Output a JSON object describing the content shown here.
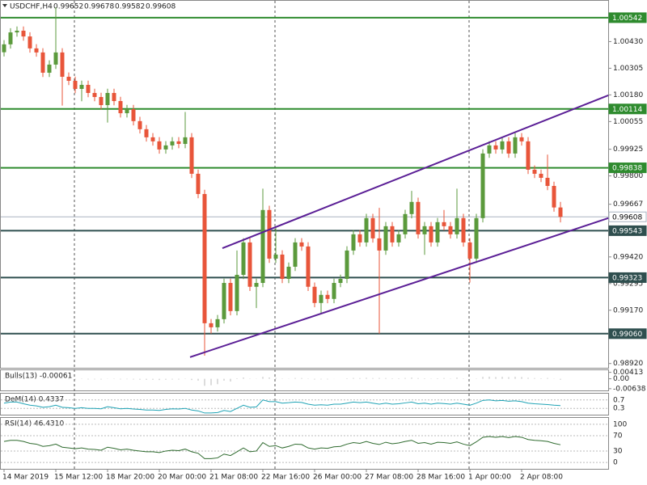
{
  "chart_data": {
    "type": "candlestick",
    "symbol": "USDCHF,H4",
    "up_color": "#5b9a3c",
    "down_color": "#e8553a",
    "categories": [
      "14 Mar 2019",
      null,
      null,
      null,
      null,
      null,
      null,
      null,
      "15 Mar 12:00",
      null,
      null,
      null,
      null,
      null,
      null,
      null,
      "18 Mar 20:00",
      null,
      null,
      null,
      null,
      null,
      null,
      null,
      "20 Mar 00:00",
      null,
      null,
      null,
      null,
      null,
      null,
      null,
      "21 Mar 08:00",
      null,
      null,
      null,
      null,
      null,
      null,
      null,
      "22 Mar 16:00",
      null,
      null,
      null,
      null,
      null,
      null,
      null,
      "26 Mar 00:00",
      null,
      null,
      null,
      null,
      null,
      null,
      null,
      "27 Mar 08:00",
      null,
      null,
      null,
      null,
      null,
      null,
      null,
      "28 Mar 16:00",
      null,
      null,
      null,
      null,
      null,
      null,
      null,
      "1 Apr 00:00",
      null,
      null,
      null,
      null,
      null,
      null,
      null,
      "2 Apr 08:00",
      null,
      null,
      null,
      null,
      null,
      null
    ],
    "open": [
      1.0038,
      1.00417,
      1.00473,
      1.00481,
      1.00454,
      1.00398,
      1.00379,
      1.00284,
      1.00322,
      1.00379,
      1.00265,
      1.00246,
      1.00208,
      1.00227,
      1.00189,
      1.0017,
      1.00132,
      1.00189,
      1.00151,
      1.00094,
      1.00113,
      1.00057,
      1.00019,
      0.99981,
      0.99962,
      0.99924,
      0.99943,
      0.99962,
      0.9995,
      0.99981,
      0.9981,
      0.99715,
      0.99109,
      0.9909,
      0.99128,
      0.99298,
      0.99166,
      0.99336,
      0.99488,
      0.9928,
      0.99298,
      0.9964,
      0.99412,
      0.99431,
      0.99317,
      0.99374,
      0.99488,
      0.99469,
      0.9928,
      0.99204,
      0.99242,
      0.99223,
      0.99298,
      0.99317,
      0.9945,
      0.99526,
      0.99488,
      0.99602,
      0.99507,
      0.9945,
      0.99564,
      0.99488,
      0.99526,
      0.99621,
      0.99678,
      0.99526,
      0.99564,
      0.99488,
      0.99583,
      0.99564,
      0.99526,
      0.99602,
      0.99488,
      0.99412,
      0.99602,
      0.99905,
      0.99943,
      0.99924,
      0.99962,
      0.99905,
      0.99981,
      0.99962,
      0.99829,
      0.9981,
      0.99791,
      0.99753,
      0.99652
    ],
    "high": [
      1.00437,
      1.00493,
      1.00501,
      1.00501,
      1.00474,
      1.00418,
      1.00399,
      1.00342,
      1.0059,
      1.00399,
      1.00285,
      1.00266,
      1.00247,
      1.00247,
      1.00209,
      1.0019,
      1.00209,
      1.00209,
      1.00171,
      1.00133,
      1.00133,
      1.00077,
      1.00039,
      1.00001,
      0.99982,
      0.99963,
      0.99982,
      0.99982,
      1.001,
      1.00001,
      0.9983,
      0.99735,
      0.99129,
      0.99148,
      0.99318,
      0.99318,
      0.9945,
      0.99508,
      0.99508,
      0.99318,
      0.9974,
      0.9966,
      0.9956,
      0.99451,
      0.99394,
      0.99508,
      0.99508,
      0.99489,
      0.993,
      0.99262,
      0.99262,
      0.99318,
      0.99337,
      0.9947,
      0.99546,
      0.99546,
      0.99622,
      0.99622,
      0.9965,
      0.99584,
      0.99584,
      0.99546,
      0.99641,
      0.9973,
      0.99698,
      0.99584,
      0.99584,
      0.99603,
      0.9964,
      0.99584,
      0.9974,
      0.99622,
      0.99508,
      0.99622,
      0.99925,
      0.99963,
      0.99963,
      0.99982,
      0.99982,
      1.00001,
      1.00001,
      0.99982,
      0.99849,
      0.9983,
      0.999,
      0.99773,
      0.99678
    ],
    "low": [
      1.0036,
      1.00397,
      1.00453,
      1.00434,
      1.00378,
      1.00359,
      1.00264,
      1.00264,
      1.00302,
      1.0013,
      1.00226,
      1.00188,
      1.0015,
      1.00169,
      1.0015,
      1.00112,
      1.0005,
      1.00131,
      1.00074,
      1.00074,
      1.00037,
      0.99999,
      0.99961,
      0.99942,
      0.99904,
      0.99904,
      0.99923,
      0.9993,
      0.9993,
      0.9979,
      0.99695,
      0.98957,
      0.9906,
      0.9907,
      0.99108,
      0.99146,
      0.99146,
      0.99316,
      0.9926,
      0.9918,
      0.99278,
      0.99392,
      0.99392,
      0.99297,
      0.99297,
      0.99354,
      0.99449,
      0.9926,
      0.99184,
      0.9915,
      0.99203,
      0.99203,
      0.99278,
      0.99297,
      0.9943,
      0.99468,
      0.99468,
      0.99487,
      0.9906,
      0.9943,
      0.99468,
      0.99468,
      0.99506,
      0.99601,
      0.99506,
      0.9943,
      0.99468,
      0.99468,
      0.99544,
      0.99506,
      0.99506,
      0.99468,
      0.993,
      0.99392,
      0.99582,
      0.99885,
      0.99904,
      0.99904,
      0.99885,
      0.99885,
      0.99942,
      0.99809,
      0.9979,
      0.99771,
      0.99733,
      0.99632,
      0.99582
    ],
    "close": [
      1.00417,
      1.00473,
      1.00481,
      1.00454,
      1.00398,
      1.00379,
      1.00284,
      1.00322,
      1.00379,
      1.00265,
      1.00246,
      1.00208,
      1.00227,
      1.00189,
      1.0017,
      1.00132,
      1.00189,
      1.00151,
      1.00094,
      1.00113,
      1.00057,
      1.00019,
      0.99981,
      0.99962,
      0.99924,
      0.99943,
      0.99962,
      0.9995,
      0.99981,
      0.9981,
      0.99715,
      0.99109,
      0.9909,
      0.99128,
      0.99298,
      0.99166,
      0.99336,
      0.99488,
      0.9928,
      0.99298,
      0.9964,
      0.99412,
      0.99431,
      0.99317,
      0.99374,
      0.99488,
      0.99469,
      0.9928,
      0.99204,
      0.99242,
      0.99223,
      0.99298,
      0.99317,
      0.9945,
      0.99526,
      0.99488,
      0.99602,
      0.99507,
      0.9945,
      0.99564,
      0.99488,
      0.99526,
      0.99621,
      0.99678,
      0.99526,
      0.99564,
      0.99488,
      0.99583,
      0.99564,
      0.99526,
      0.99602,
      0.99488,
      0.99412,
      0.99602,
      0.99905,
      0.99943,
      0.99924,
      0.99962,
      0.99905,
      0.99981,
      0.99962,
      0.99829,
      0.9981,
      0.99791,
      0.99753,
      0.99652,
      0.99608
    ],
    "ylim": [
      0.989,
      1.00625
    ],
    "yticks": [
      {
        "value": 1.0043,
        "label": "1.00430"
      },
      1.00305,
      {
        "value": 1.0018,
        "label": "1.00180"
      },
      1.00055,
      0.99925,
      {
        "value": 0.998,
        "label": "0.99800"
      },
      0.99667,
      {
        "value": 0.9942,
        "label": "0.99420"
      },
      0.99295,
      {
        "value": 0.9917,
        "label": "0.99170"
      },
      {
        "value": 0.9892,
        "label": "0.98920"
      }
    ],
    "levels": [
      {
        "price": 1.00542,
        "color": "#2e8b2e"
      },
      {
        "price": 1.00114,
        "color": "#2e8b2e"
      },
      {
        "price": 0.99838,
        "color": "#2e8b2e"
      },
      {
        "price": 0.99608,
        "color": "#a9b4c0",
        "style": "current"
      },
      {
        "price": 0.99543,
        "color": "#2f4f4f"
      },
      {
        "price": 0.99323,
        "color": "#2f4f4f"
      },
      {
        "price": {
          "value": 0.9906,
          "label": "0.99060"
        },
        "color": "#2f4f4f"
      }
    ],
    "trendline_color": "#5b1f96",
    "trendlines": [
      {
        "from": [
          33.75,
          0.99461
        ],
        "to": [
          93.4,
          1.00178
        ]
      },
      {
        "from": [
          28.75,
          0.9895
        ],
        "to": [
          93.4,
          0.99602
        ]
      }
    ],
    "indicators": [
      {
        "type": "bar",
        "header": "Bulls(13) -0.00061",
        "color": "#b8b8b8",
        "ylim": [
          -0.0075,
          0.0055
        ],
        "yticks": [
          0.00413,
          {
            "value": 0,
            "label": "0.00"
          },
          -0.00638
        ],
        "values": [
          0.0004,
          0.0008,
          0.0007,
          0.0005,
          0.0002,
          0.0001,
          -0.0003,
          0,
          0.0006,
          -0.0002,
          -0.0003,
          -0.0004,
          -0.0002,
          -0.0004,
          -0.0004,
          -0.0005,
          0.0001,
          -0.0002,
          -0.0004,
          -0.0003,
          -0.0005,
          -0.0006,
          -0.0007,
          -0.0007,
          -0.0008,
          -0.0006,
          -0.0005,
          -0.0005,
          0.0002,
          -0.0008,
          -0.0012,
          -0.0045,
          -0.0042,
          -0.0035,
          -0.0012,
          -0.0018,
          0.0003,
          0.0008,
          0.0002,
          0.0001,
          0.0012,
          0.0008,
          0.0006,
          0.0002,
          0.0001,
          0.0005,
          0.0004,
          -0.0002,
          -0.0005,
          -0.0004,
          -0.0004,
          -0.0001,
          0,
          0.0003,
          0.0005,
          0.0004,
          0.0006,
          0.0004,
          0.0005,
          0.0004,
          0.0003,
          0.0003,
          0.0005,
          0.0007,
          0.0004,
          0.0003,
          0.0002,
          0.0003,
          0.0004,
          0.0002,
          0.0007,
          0.0002,
          -0.0001,
          0.0002,
          0.0012,
          0.0013,
          0.0011,
          0.0012,
          0.001,
          0.0012,
          0.0011,
          0.0006,
          0.0004,
          0.0003,
          0.0005,
          0.0001,
          -0.00061
        ]
      },
      {
        "type": "line",
        "header": "DeM(14) 0.4337",
        "color": "#1fa3b5",
        "ylim": [
          0,
          1
        ],
        "yticks": [
          0.7,
          0.3
        ],
        "values": [
          0.55,
          0.6,
          0.6,
          0.52,
          0.45,
          0.42,
          0.35,
          0.38,
          0.45,
          0.35,
          0.33,
          0.3,
          0.33,
          0.3,
          0.3,
          0.28,
          0.38,
          0.33,
          0.28,
          0.3,
          0.27,
          0.25,
          0.22,
          0.22,
          0.2,
          0.25,
          0.28,
          0.27,
          0.3,
          0.22,
          0.18,
          0.08,
          0.08,
          0.1,
          0.2,
          0.15,
          0.3,
          0.45,
          0.35,
          0.37,
          0.7,
          0.62,
          0.62,
          0.55,
          0.57,
          0.6,
          0.58,
          0.5,
          0.45,
          0.47,
          0.45,
          0.5,
          0.5,
          0.55,
          0.6,
          0.57,
          0.6,
          0.55,
          0.5,
          0.55,
          0.5,
          0.52,
          0.56,
          0.6,
          0.52,
          0.55,
          0.5,
          0.55,
          0.53,
          0.5,
          0.55,
          0.5,
          0.45,
          0.55,
          0.68,
          0.7,
          0.66,
          0.68,
          0.64,
          0.66,
          0.62,
          0.55,
          0.52,
          0.5,
          0.48,
          0.45,
          0.4337
        ]
      },
      {
        "type": "line",
        "header": "RSI(14) 46.4310",
        "color": "#2f6b2f",
        "ylim": [
          -16.7,
          116.7
        ],
        "yticks": [
          100,
          70,
          30,
          0
        ],
        "values": [
          55,
          58,
          58,
          55,
          50,
          48,
          42,
          44,
          48,
          40,
          38,
          36,
          38,
          35,
          34,
          32,
          40,
          37,
          33,
          35,
          32,
          30,
          28,
          28,
          26,
          30,
          32,
          31,
          35,
          28,
          24,
          10,
          10,
          12,
          22,
          18,
          28,
          38,
          28,
          30,
          52,
          42,
          44,
          38,
          42,
          48,
          47,
          38,
          35,
          38,
          37,
          41,
          42,
          48,
          52,
          50,
          55,
          50,
          47,
          53,
          49,
          51,
          55,
          58,
          50,
          52,
          48,
          53,
          52,
          50,
          54,
          48,
          44,
          54,
          66,
          68,
          66,
          68,
          65,
          68,
          66,
          60,
          58,
          57,
          55,
          50,
          46.431
        ]
      }
    ]
  }
}
